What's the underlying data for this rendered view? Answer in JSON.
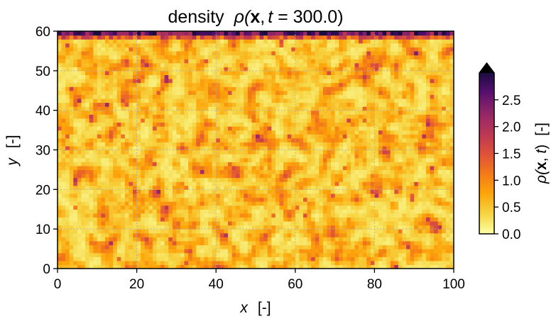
{
  "chart_data": {
    "type": "heatmap",
    "title": {
      "prefix": "density",
      "symbol": "ρ(",
      "bold": "x",
      "comma": ",",
      "t_var": "t",
      "eq": " = 300.0)"
    },
    "xlabel": {
      "var": "x",
      "unit": "[-]"
    },
    "ylabel": {
      "var": "y",
      "unit": "[-]"
    },
    "colorbar_label": {
      "rho": "ρ(",
      "bold": "x",
      "mid": ", ",
      "t_var": "t",
      "close": ")",
      "unit": "[-]"
    },
    "xlim": [
      0,
      100
    ],
    "ylim": [
      0,
      60
    ],
    "x_ticks": [
      0,
      20,
      40,
      60,
      80,
      100
    ],
    "x_tick_labels": [
      "0",
      "20",
      "40",
      "60",
      "80",
      "100"
    ],
    "y_ticks": [
      0,
      10,
      20,
      30,
      40,
      50,
      60
    ],
    "y_tick_labels": [
      "0",
      "10",
      "20",
      "30",
      "40",
      "50",
      "60"
    ],
    "colorbar_ticks": [
      0.0,
      0.5,
      1.0,
      1.5,
      2.0,
      2.5
    ],
    "colorbar_tick_labels": [
      "0.0",
      "0.5",
      "1.0",
      "1.5",
      "2.0",
      "2.5"
    ],
    "vmin": 0.0,
    "vmax": 3.0,
    "colormap": "inferno_r",
    "colorbar_extend": "max",
    "grid": true,
    "grid_style": "dotted",
    "grid_color": "#b0b0b0",
    "grid_x": [
      20,
      40,
      60,
      80
    ],
    "grid_y": [
      10,
      20,
      30,
      40,
      50
    ],
    "grid_size": {
      "nx": 100,
      "ny": 60
    },
    "field_description": "Mostly low density (~0.2-0.5) with scattered patches up to ~1.5 and a high-density band (~2-3) along the top boundary y≈59-60",
    "seed": 300
  }
}
